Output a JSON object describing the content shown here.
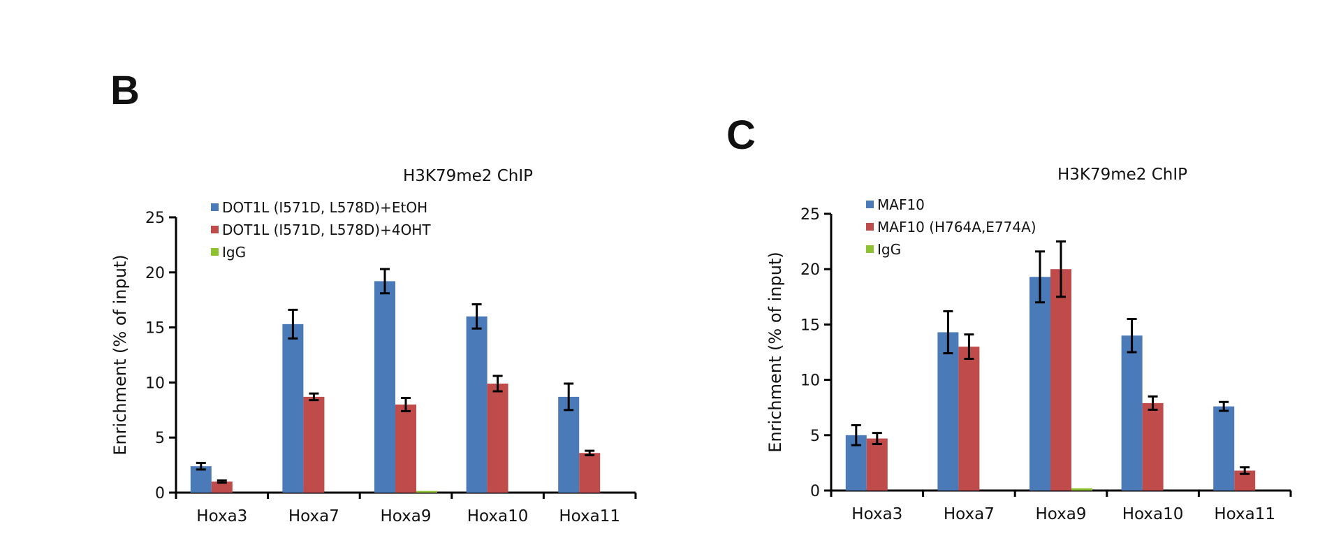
{
  "panels": [
    {
      "letter": "B"
    },
    {
      "letter": "C"
    }
  ],
  "chart_data": [
    {
      "type": "bar",
      "title": "H3K79me2 ChIP",
      "ylabel": "Enrichment (% of input)",
      "ylim": [
        0,
        25
      ],
      "yticks": [
        0,
        5,
        10,
        15,
        20,
        25
      ],
      "categories": [
        "Hoxa3",
        "Hoxa7",
        "Hoxa9",
        "Hoxa10",
        "Hoxa11"
      ],
      "legend_position": "top-left",
      "series": [
        {
          "name": "DOT1L (I571D, L578D)+EtOH",
          "color": "#4a7ab7",
          "values": [
            2.4,
            15.3,
            19.2,
            16.0,
            8.7
          ],
          "errors": [
            0.3,
            1.3,
            1.1,
            1.1,
            1.2
          ]
        },
        {
          "name": "DOT1L (I571D, L578D)+4OHT",
          "color": "#bf4b4b",
          "values": [
            1.0,
            8.7,
            8.0,
            9.9,
            3.6
          ],
          "errors": [
            0.1,
            0.3,
            0.6,
            0.7,
            0.2
          ]
        },
        {
          "name": "IgG",
          "color": "#8ec32f",
          "values": [
            0,
            0,
            0.15,
            0,
            0
          ],
          "errors": [
            0,
            0,
            0,
            0,
            0
          ]
        }
      ]
    },
    {
      "type": "bar",
      "title": "H3K79me2 ChIP",
      "ylabel": "Enrichment (% of input)",
      "ylim": [
        0,
        25
      ],
      "yticks": [
        0,
        5,
        10,
        15,
        20,
        25
      ],
      "categories": [
        "Hoxa3",
        "Hoxa7",
        "Hoxa9",
        "Hoxa10",
        "Hoxa11"
      ],
      "legend_position": "top-left",
      "series": [
        {
          "name": "MAF10",
          "color": "#4a7ab7",
          "values": [
            5.0,
            14.3,
            19.3,
            14.0,
            7.6
          ],
          "errors": [
            0.9,
            1.9,
            2.3,
            1.5,
            0.4
          ]
        },
        {
          "name": "MAF10 (H764A,E774A)",
          "color": "#bf4b4b",
          "values": [
            4.7,
            13.0,
            20.0,
            7.9,
            1.8
          ],
          "errors": [
            0.5,
            1.1,
            2.5,
            0.6,
            0.3
          ]
        },
        {
          "name": "IgG",
          "color": "#8ec32f",
          "values": [
            0,
            0,
            0.2,
            0,
            0
          ],
          "errors": [
            0,
            0,
            0,
            0,
            0
          ]
        }
      ]
    }
  ]
}
